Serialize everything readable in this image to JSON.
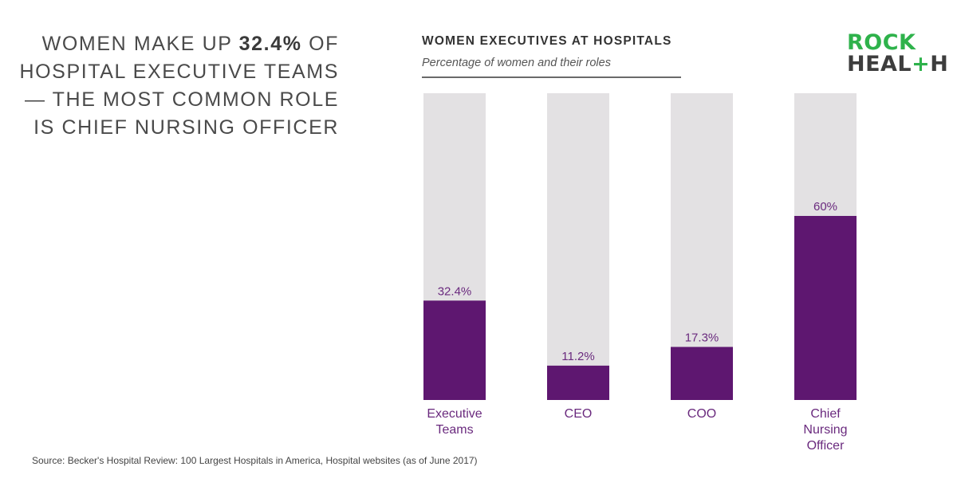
{
  "headline": {
    "part1": "WOMEN MAKE UP ",
    "highlight": "32.4%",
    "part2": " OF HOSPITAL EXECUTIVE TEAMS— THE MOST COMMON ROLE IS CHIEF NURSING OFFICER"
  },
  "logo": {
    "line1": "ROCK",
    "line2_a": "HEAL",
    "line2_plus": "+",
    "line2_b": "H"
  },
  "source": "Source: Becker's Hospital Review: 100 Largest Hospitals in America, Hospital websites (as of June 2017)",
  "colors": {
    "bar": "#5e1770",
    "track": "#e3e1e3",
    "label": "#6a2a7e",
    "brand_green": "#2eb24b"
  },
  "chart_data": {
    "type": "bar",
    "title": "WOMEN EXECUTIVES AT HOSPITALS",
    "subtitle": "Percentage of women and their roles",
    "categories": [
      [
        "Executive",
        "Teams"
      ],
      [
        "CEO"
      ],
      [
        "COO"
      ],
      [
        "Chief",
        "Nursing",
        "Officer"
      ]
    ],
    "values": [
      32.4,
      11.2,
      17.3,
      60
    ],
    "value_labels": [
      "32.4%",
      "11.2%",
      "17.3%",
      "60%"
    ],
    "ylim": [
      0,
      100
    ],
    "grid": false,
    "legend": "none"
  }
}
